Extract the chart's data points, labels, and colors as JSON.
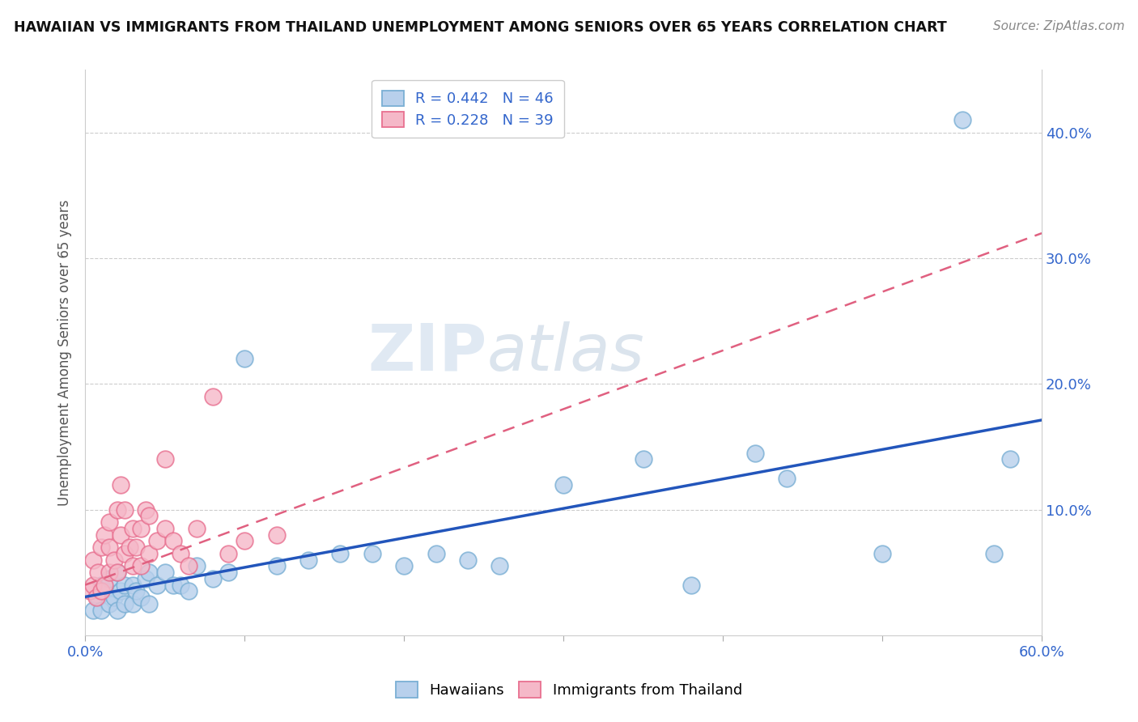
{
  "title": "HAWAIIAN VS IMMIGRANTS FROM THAILAND UNEMPLOYMENT AMONG SENIORS OVER 65 YEARS CORRELATION CHART",
  "source": "Source: ZipAtlas.com",
  "ylabel": "Unemployment Among Seniors over 65 years",
  "xlim": [
    0.0,
    0.6
  ],
  "ylim": [
    0.0,
    0.45
  ],
  "xticks": [
    0.0,
    0.1,
    0.2,
    0.3,
    0.4,
    0.5,
    0.6
  ],
  "yticks": [
    0.0,
    0.1,
    0.2,
    0.3,
    0.4
  ],
  "legend_r1": "R = 0.442   N = 46",
  "legend_r2": "R = 0.228   N = 39",
  "watermark_zip": "ZIP",
  "watermark_atlas": "atlas",
  "hawaii_fill": "#b8d0ec",
  "hawaii_edge": "#7aafd4",
  "thai_fill": "#f5b8c8",
  "thai_edge": "#e87090",
  "trend_hawaii_color": "#2255bb",
  "trend_thai_color": "#e06080",
  "trend_dashed_color": "#c0c0c8",
  "hawaiian_x": [
    0.005,
    0.008,
    0.01,
    0.01,
    0.012,
    0.015,
    0.015,
    0.018,
    0.02,
    0.02,
    0.022,
    0.025,
    0.025,
    0.03,
    0.03,
    0.032,
    0.035,
    0.038,
    0.04,
    0.04,
    0.045,
    0.05,
    0.055,
    0.06,
    0.065,
    0.07,
    0.08,
    0.09,
    0.1,
    0.12,
    0.14,
    0.16,
    0.18,
    0.2,
    0.22,
    0.24,
    0.26,
    0.3,
    0.35,
    0.38,
    0.42,
    0.44,
    0.5,
    0.55,
    0.57,
    0.58
  ],
  "hawaiian_y": [
    0.02,
    0.03,
    0.02,
    0.04,
    0.035,
    0.025,
    0.045,
    0.03,
    0.02,
    0.05,
    0.035,
    0.025,
    0.04,
    0.025,
    0.04,
    0.035,
    0.03,
    0.045,
    0.025,
    0.05,
    0.04,
    0.05,
    0.04,
    0.04,
    0.035,
    0.055,
    0.045,
    0.05,
    0.22,
    0.055,
    0.06,
    0.065,
    0.065,
    0.055,
    0.065,
    0.06,
    0.055,
    0.12,
    0.14,
    0.04,
    0.145,
    0.125,
    0.065,
    0.41,
    0.065,
    0.14
  ],
  "thai_x": [
    0.003,
    0.005,
    0.005,
    0.007,
    0.008,
    0.01,
    0.01,
    0.012,
    0.012,
    0.015,
    0.015,
    0.015,
    0.018,
    0.02,
    0.02,
    0.022,
    0.022,
    0.025,
    0.025,
    0.028,
    0.03,
    0.03,
    0.032,
    0.035,
    0.035,
    0.038,
    0.04,
    0.04,
    0.045,
    0.05,
    0.05,
    0.055,
    0.06,
    0.065,
    0.07,
    0.08,
    0.09,
    0.1,
    0.12
  ],
  "thai_y": [
    0.035,
    0.04,
    0.06,
    0.03,
    0.05,
    0.035,
    0.07,
    0.04,
    0.08,
    0.05,
    0.07,
    0.09,
    0.06,
    0.05,
    0.1,
    0.08,
    0.12,
    0.065,
    0.1,
    0.07,
    0.055,
    0.085,
    0.07,
    0.055,
    0.085,
    0.1,
    0.065,
    0.095,
    0.075,
    0.085,
    0.14,
    0.075,
    0.065,
    0.055,
    0.085,
    0.19,
    0.065,
    0.075,
    0.08
  ]
}
